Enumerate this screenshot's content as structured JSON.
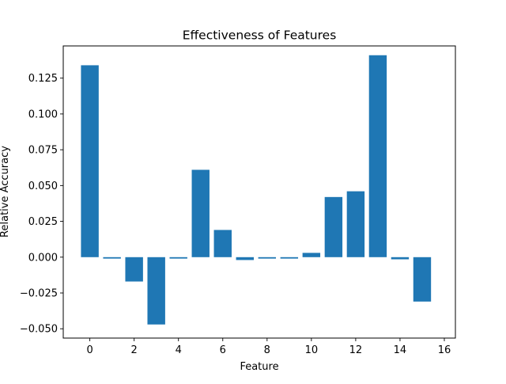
{
  "chart_data": {
    "type": "bar",
    "title": "Effectiveness of Features",
    "xlabel": "Feature",
    "ylabel": "Relative Accuracy",
    "x": [
      0,
      1,
      2,
      3,
      4,
      5,
      6,
      7,
      8,
      9,
      10,
      11,
      12,
      13,
      14,
      15
    ],
    "values": [
      0.134,
      -0.001,
      -0.017,
      -0.047,
      -0.001,
      0.061,
      0.019,
      -0.002,
      -0.001,
      -0.001,
      0.003,
      0.042,
      0.046,
      0.141,
      -0.0015,
      -0.031
    ],
    "xlim": [
      -1.2,
      16.5
    ],
    "ylim": [
      -0.0565,
      0.1475
    ],
    "xticks": [
      0,
      2,
      4,
      6,
      8,
      10,
      12,
      14,
      16
    ],
    "xtick_labels": [
      "0",
      "2",
      "4",
      "6",
      "8",
      "10",
      "12",
      "14",
      "16"
    ],
    "yticks": [
      -0.05,
      -0.025,
      0,
      0.025,
      0.05,
      0.075,
      0.1,
      0.125
    ],
    "ytick_labels": [
      "−0.050",
      "−0.025",
      "0.000",
      "0.025",
      "0.050",
      "0.075",
      "0.100",
      "0.125"
    ],
    "bar_color": "#1f77b4",
    "grid": false,
    "legend": "none"
  }
}
